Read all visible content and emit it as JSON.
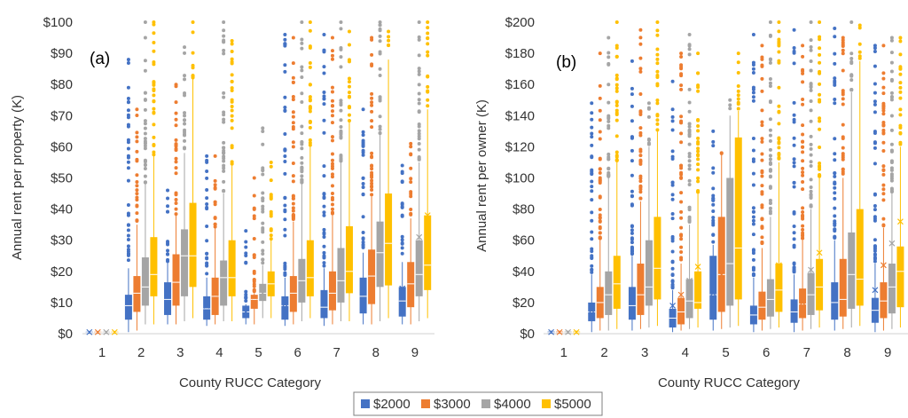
{
  "chart_data": [
    {
      "type": "box",
      "panel_label": "(a)",
      "xlabel": "County RUCC Category",
      "ylabel": "Annual rent per property (K)",
      "categories": [
        "1",
        "2",
        "3",
        "4",
        "5",
        "6",
        "7",
        "8",
        "9"
      ],
      "ylim": [
        0,
        100
      ],
      "yticks": [
        "$0",
        "$10",
        "$20",
        "$30",
        "$40",
        "$50",
        "$60",
        "$70",
        "$80",
        "$90",
        "$100"
      ],
      "grid": false,
      "series": [
        {
          "name": "$2000",
          "color": "#4472C4",
          "q1": [
            0.3,
            4.5,
            6,
            4.5,
            5,
            4.5,
            5,
            6.5,
            5.5
          ],
          "median": [
            0.5,
            9,
            11,
            8,
            7,
            9,
            8.5,
            12,
            10.5
          ],
          "q3": [
            0.7,
            12.5,
            16.5,
            12,
            9,
            12,
            14,
            18,
            15
          ],
          "mean": [
            0.5,
            11,
            13,
            9,
            7,
            9.5,
            10.5,
            14.5,
            14.5
          ],
          "whisker_low": [
            0,
            0.5,
            3,
            2.5,
            3,
            2.5,
            2.5,
            3,
            3
          ],
          "whisker_high": [
            0.9,
            21,
            23,
            18,
            9.5,
            18,
            21,
            26,
            23
          ],
          "outlier_max": [
            0,
            88,
            46,
            57,
            33,
            96,
            96,
            72,
            54
          ]
        },
        {
          "name": "$3000",
          "color": "#ED7D31",
          "q1": [
            0.3,
            7,
            9,
            6,
            8,
            7,
            7.5,
            9.5,
            8.5
          ],
          "median": [
            0.5,
            13,
            16.5,
            12,
            11,
            13,
            13,
            18.5,
            16
          ],
          "q3": [
            0.7,
            18.5,
            25.5,
            18,
            12.5,
            18.5,
            20,
            27,
            23
          ],
          "mean": [
            0.5,
            15,
            18,
            13,
            10,
            14.5,
            15,
            21,
            18
          ],
          "whisker_low": [
            0,
            1,
            3,
            3,
            3,
            3,
            3,
            3,
            3
          ],
          "whisker_high": [
            0.9,
            35,
            38,
            34,
            13,
            36,
            38,
            44,
            37
          ],
          "outlier_max": [
            0,
            72,
            80,
            57,
            50,
            95,
            95,
            95,
            61
          ]
        },
        {
          "name": "$4000",
          "color": "#A5A5A5",
          "q1": [
            0.3,
            9,
            12,
            9,
            10.5,
            10,
            10,
            15,
            12
          ],
          "median": [
            0.5,
            15,
            25,
            18,
            13,
            17,
            17,
            26,
            19
          ],
          "q3": [
            0.7,
            24.5,
            33.5,
            23.5,
            16,
            24,
            27.5,
            36,
            30
          ],
          "mean": [
            0.5,
            20.5,
            28,
            20,
            13,
            21,
            21.5,
            28,
            31
          ],
          "whisker_low": [
            0,
            3,
            4,
            4,
            5,
            4,
            4,
            4,
            4
          ],
          "whisker_high": [
            0.9,
            48,
            58,
            45,
            22,
            48,
            55,
            64,
            55
          ],
          "outlier_max": [
            0,
            100,
            92,
            100,
            66,
            100,
            100,
            100,
            100
          ]
        },
        {
          "name": "$5000",
          "color": "#FFC000",
          "q1": [
            0.3,
            12,
            15,
            12,
            12,
            12,
            13,
            15.5,
            14
          ],
          "median": [
            0.5,
            19,
            25,
            18,
            16,
            18,
            20,
            29,
            22
          ],
          "q3": [
            0.7,
            31,
            42,
            30,
            20,
            30,
            34.5,
            45,
            38
          ],
          "mean": [
            0.5,
            25.5,
            32,
            26,
            18,
            25,
            26,
            35,
            38
          ],
          "whisker_low": [
            0,
            3,
            5,
            4,
            5,
            5,
            4,
            5,
            5
          ],
          "whisker_high": [
            0.9,
            57,
            82,
            54,
            30,
            60,
            68,
            88,
            72
          ],
          "outlier_max": [
            0,
            100,
            100,
            94,
            55,
            100,
            97,
            97,
            100
          ]
        }
      ]
    },
    {
      "type": "box",
      "panel_label": "(b)",
      "xlabel": "County RUCC Category",
      "ylabel": "Annual rent per owner (K)",
      "categories": [
        "1",
        "2",
        "3",
        "4",
        "5",
        "6",
        "7",
        "8",
        "9"
      ],
      "ylim": [
        0,
        200
      ],
      "yticks": [
        "$0",
        "$20",
        "$40",
        "$60",
        "$80",
        "$100",
        "$120",
        "$140",
        "$160",
        "$180",
        "$200"
      ],
      "grid": false,
      "series": [
        {
          "name": "$2000",
          "color": "#4472C4",
          "q1": [
            0.5,
            8,
            9,
            4,
            9,
            6,
            7,
            9,
            7
          ],
          "median": [
            1,
            14,
            18,
            10,
            25,
            12,
            14,
            20,
            15
          ],
          "q3": [
            1.5,
            20,
            30,
            16,
            50,
            18,
            22,
            33,
            23
          ],
          "mean": [
            1,
            15,
            23,
            18,
            26,
            15,
            17,
            26,
            28
          ],
          "whisker_low": [
            0,
            1,
            2,
            1,
            2,
            1,
            1,
            2,
            1
          ],
          "whisker_high": [
            2,
            38,
            50,
            28,
            57,
            36,
            38,
            60,
            45
          ],
          "outlier_max": [
            0,
            148,
            175,
            162,
            130,
            192,
            195,
            196,
            185
          ]
        },
        {
          "name": "$3000",
          "color": "#ED7D31",
          "q1": [
            0.5,
            10,
            12,
            6,
            14,
            9,
            10,
            11,
            10
          ],
          "median": [
            1,
            20,
            25,
            14,
            38,
            17,
            19,
            22,
            21
          ],
          "q3": [
            1.5,
            30,
            45,
            23,
            75,
            27,
            29,
            48,
            33
          ],
          "mean": [
            1,
            23,
            32,
            25,
            38,
            22,
            20,
            30,
            44
          ],
          "whisker_low": [
            0,
            2,
            3,
            2,
            3,
            2,
            2,
            3,
            2
          ],
          "whisker_high": [
            2,
            60,
            85,
            45,
            115,
            55,
            60,
            100,
            68
          ],
          "outlier_max": [
            0,
            180,
            195,
            180,
            116,
            185,
            185,
            190,
            185
          ]
        },
        {
          "name": "$4000",
          "color": "#A5A5A5",
          "q1": [
            0.5,
            12,
            18,
            10,
            18,
            11,
            12,
            16,
            13
          ],
          "median": [
            1,
            25,
            30,
            21,
            45,
            22,
            25,
            38,
            30
          ],
          "q3": [
            1.5,
            40,
            60,
            35,
            100,
            35,
            39,
            65,
            45
          ],
          "mean": [
            1,
            32,
            57,
            34,
            53,
            30,
            41,
            45,
            58
          ],
          "whisker_low": [
            0,
            2,
            4,
            3,
            4,
            3,
            3,
            4,
            3
          ],
          "whisker_high": [
            2,
            100,
            120,
            70,
            140,
            75,
            80,
            155,
            90
          ],
          "outlier_max": [
            0,
            190,
            148,
            192,
            150,
            200,
            200,
            200,
            190
          ]
        },
        {
          "name": "$5000",
          "color": "#FFC000",
          "q1": [
            0.5,
            16,
            22,
            16,
            22,
            14,
            15,
            18,
            17
          ],
          "median": [
            1,
            32,
            42,
            20,
            55,
            28,
            30,
            35,
            40
          ],
          "q3": [
            1.5,
            50,
            75,
            40,
            126,
            45,
            48,
            80,
            56
          ],
          "mean": [
            1,
            43,
            56,
            43,
            65,
            44,
            52,
            60,
            72
          ],
          "whisker_low": [
            0,
            3,
            5,
            4,
            5,
            4,
            4,
            5,
            4
          ],
          "whisker_high": [
            2,
            110,
            130,
            90,
            143,
            110,
            100,
            175,
            120
          ],
          "outlier_max": [
            0,
            200,
            200,
            180,
            180,
            200,
            200,
            198,
            190
          ]
        }
      ]
    }
  ],
  "legend": {
    "position": "bottom-center",
    "items": [
      {
        "label": "$2000",
        "color": "#4472C4"
      },
      {
        "label": "$3000",
        "color": "#ED7D31"
      },
      {
        "label": "$4000",
        "color": "#A5A5A5"
      },
      {
        "label": "$5000",
        "color": "#FFC000"
      }
    ]
  }
}
